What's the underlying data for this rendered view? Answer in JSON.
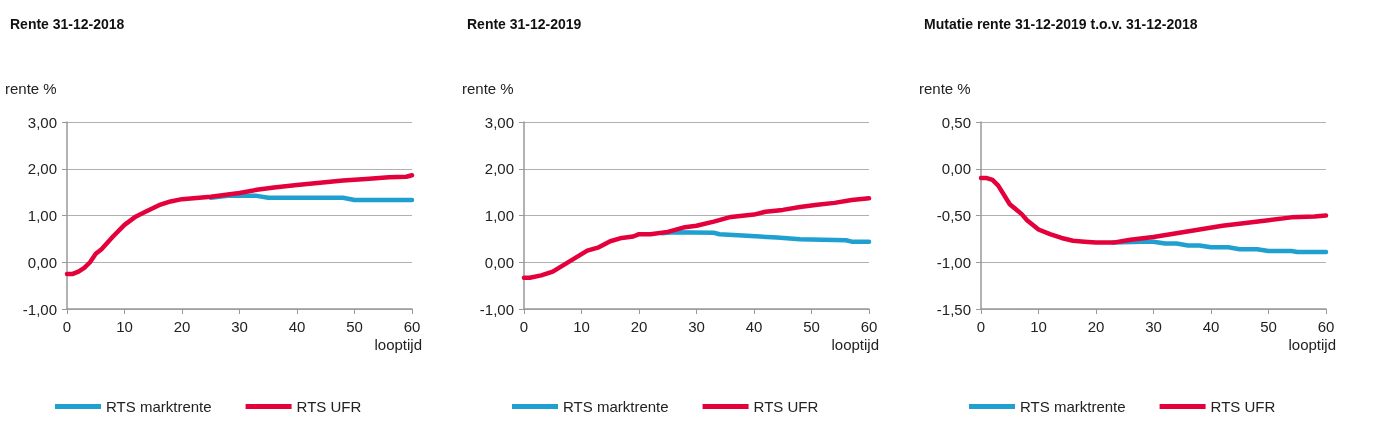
{
  "chart_data": [
    {
      "type": "line",
      "title": "Rente 31-12-2018",
      "ylabel": "rente %",
      "xlabel": "looptijd",
      "xlim": [
        0,
        60
      ],
      "xticks": [
        0,
        10,
        20,
        30,
        40,
        50,
        60
      ],
      "ylim": [
        -1,
        3
      ],
      "yticks": [
        {
          "value": -1,
          "label": "-1,00"
        },
        {
          "value": 0,
          "label": "0,00"
        },
        {
          "value": 1,
          "label": "1,00"
        },
        {
          "value": 2,
          "label": "2,00"
        },
        {
          "value": 3,
          "label": "3,00"
        }
      ],
      "grid": "y",
      "legend": "bottom",
      "series": [
        {
          "name": "RTS marktrente",
          "color": "#1fa0d0",
          "x": [
            25,
            28,
            33,
            35,
            48,
            50,
            60
          ],
          "values": [
            1.38,
            1.42,
            1.42,
            1.38,
            1.38,
            1.33,
            1.33
          ]
        },
        {
          "name": "RTS UFR",
          "color": "#e4003b",
          "x": [
            0,
            1,
            2,
            3,
            4,
            5,
            6,
            8,
            10,
            12,
            14,
            16,
            18,
            20,
            22,
            25,
            28,
            30,
            33,
            36,
            40,
            44,
            48,
            52,
            56,
            59,
            60
          ],
          "values": [
            -0.25,
            -0.25,
            -0.2,
            -0.12,
            0,
            0.18,
            0.28,
            0.55,
            0.8,
            0.98,
            1.1,
            1.22,
            1.3,
            1.35,
            1.37,
            1.4,
            1.45,
            1.48,
            1.55,
            1.6,
            1.65,
            1.7,
            1.75,
            1.78,
            1.82,
            1.83,
            1.86
          ]
        }
      ]
    },
    {
      "type": "line",
      "title": "Rente 31-12-2019",
      "ylabel": "rente %",
      "xlabel": "looptijd",
      "xlim": [
        0,
        60
      ],
      "xticks": [
        0,
        10,
        20,
        30,
        40,
        50,
        60
      ],
      "ylim": [
        -1,
        3
      ],
      "yticks": [
        {
          "value": -1,
          "label": "-1,00"
        },
        {
          "value": 0,
          "label": "0,00"
        },
        {
          "value": 1,
          "label": "1,00"
        },
        {
          "value": 2,
          "label": "2,00"
        },
        {
          "value": 3,
          "label": "3,00"
        }
      ],
      "grid": "y",
      "legend": "bottom",
      "series": [
        {
          "name": "RTS marktrente",
          "color": "#1fa0d0",
          "x": [
            24,
            26,
            33,
            34,
            38,
            44,
            48,
            56,
            57,
            60
          ],
          "values": [
            0.62,
            0.64,
            0.63,
            0.6,
            0.57,
            0.53,
            0.49,
            0.47,
            0.44,
            0.44
          ]
        },
        {
          "name": "RTS UFR",
          "color": "#e4003b",
          "x": [
            0,
            1,
            3,
            5,
            7,
            9,
            11,
            13,
            15,
            17,
            19,
            20,
            22,
            25,
            28,
            30,
            33,
            36,
            40,
            42,
            45,
            48,
            51,
            54,
            57,
            60
          ],
          "values": [
            -0.33,
            -0.33,
            -0.28,
            -0.2,
            -0.05,
            0.1,
            0.25,
            0.32,
            0.45,
            0.52,
            0.55,
            0.6,
            0.6,
            0.65,
            0.75,
            0.78,
            0.87,
            0.97,
            1.02,
            1.08,
            1.12,
            1.18,
            1.23,
            1.27,
            1.33,
            1.37
          ]
        }
      ]
    },
    {
      "type": "line",
      "title": "Mutatie rente 31-12-2019 t.o.v. 31-12-2018",
      "ylabel": "rente %",
      "xlabel": "looptijd",
      "xlim": [
        0,
        60
      ],
      "xticks": [
        0,
        10,
        20,
        30,
        40,
        50,
        60
      ],
      "ylim": [
        -1.5,
        0.5
      ],
      "yticks": [
        {
          "value": -1.5,
          "label": "-1,50"
        },
        {
          "value": -1,
          "label": "-1,00"
        },
        {
          "value": -0.5,
          "label": "-0,50"
        },
        {
          "value": 0,
          "label": "0,00"
        },
        {
          "value": 0.5,
          "label": "0,50"
        }
      ],
      "grid": "y",
      "legend": "bottom",
      "series": [
        {
          "name": "RTS marktrente",
          "color": "#1fa0d0",
          "x": [
            23,
            28,
            30,
            32,
            34,
            36,
            38,
            40,
            43,
            45,
            48,
            50,
            54,
            55,
            60
          ],
          "values": [
            -0.79,
            -0.78,
            -0.78,
            -0.8,
            -0.8,
            -0.82,
            -0.82,
            -0.84,
            -0.84,
            -0.86,
            -0.86,
            -0.88,
            -0.88,
            -0.89,
            -0.89
          ]
        },
        {
          "name": "RTS UFR",
          "color": "#e4003b",
          "x": [
            0,
            1,
            2,
            3,
            5,
            7,
            8,
            10,
            12,
            14,
            16,
            18,
            20,
            23,
            26,
            30,
            34,
            38,
            42,
            46,
            50,
            54,
            58,
            60
          ],
          "values": [
            -0.1,
            -0.1,
            -0.12,
            -0.18,
            -0.38,
            -0.48,
            -0.55,
            -0.65,
            -0.7,
            -0.74,
            -0.77,
            -0.78,
            -0.79,
            -0.79,
            -0.76,
            -0.73,
            -0.69,
            -0.65,
            -0.61,
            -0.58,
            -0.55,
            -0.52,
            -0.51,
            -0.5
          ]
        }
      ]
    }
  ]
}
